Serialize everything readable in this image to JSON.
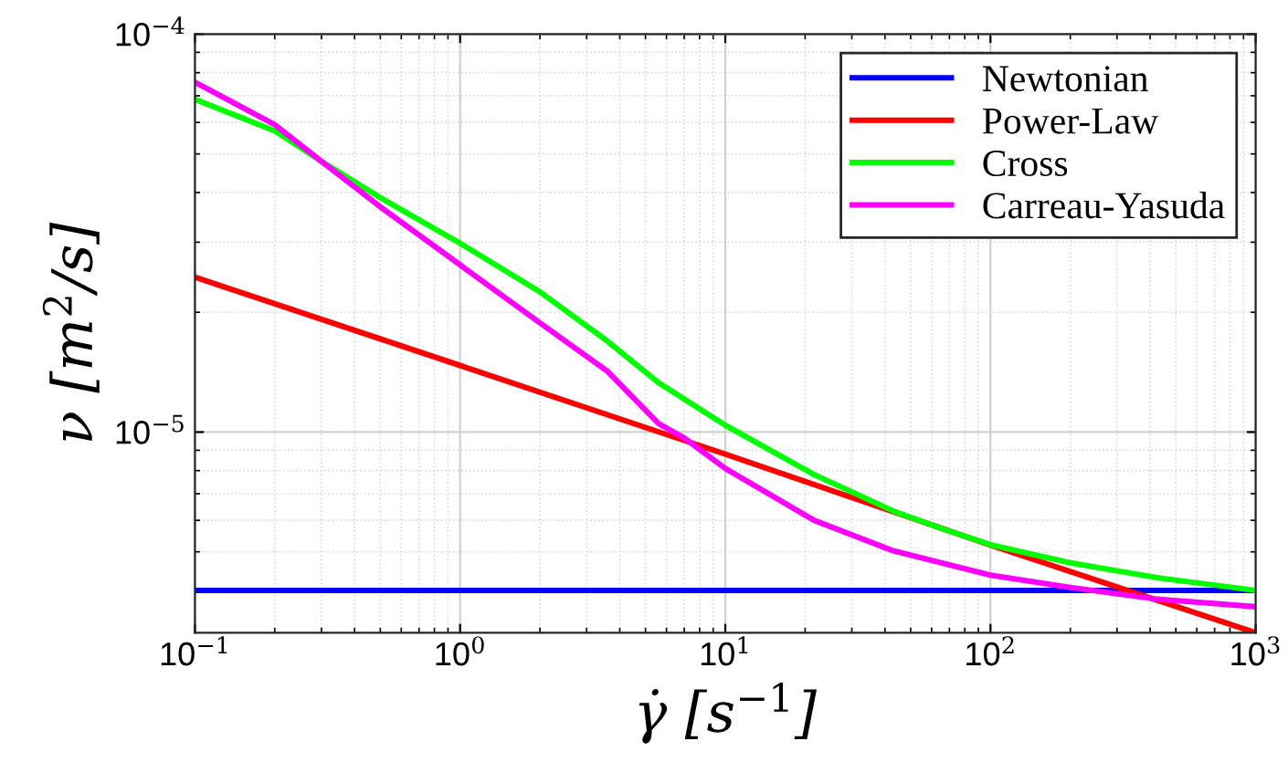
{
  "chart_data": {
    "type": "line",
    "xlabel": "γ̇ [s$^{−1}$]",
    "ylabel": "ν [m$^{2}$/s]",
    "log": "xy",
    "grid": true,
    "legend": "top right",
    "line_style": "solid",
    "marker": "none",
    "xlim": [
      0.1,
      1000
    ],
    "ylim": [
      3.13e-06,
      0.0001
    ],
    "xticks": [
      {
        "value": 0.1,
        "label": "10$^{−1}$"
      },
      {
        "value": 1,
        "label": "10$^{0}$"
      },
      {
        "value": 10,
        "label": "10$^{1}$"
      },
      {
        "value": 100,
        "label": "10$^{2}$"
      },
      {
        "value": 1000,
        "label": "10$^{3}$"
      }
    ],
    "yticks": [
      {
        "value": 1e-05,
        "label": "10$^{−5}$"
      },
      {
        "value": 0.0001,
        "label": "10$^{−4}$"
      }
    ],
    "series": [
      {
        "name": "Newtonian",
        "color": "#0000ff",
        "x": [
          0.1,
          1000
        ],
        "values": [
          4e-06,
          4e-06
        ]
      },
      {
        "name": "Power-Law",
        "color": "#ff0000",
        "x": [
          0.1,
          1,
          10,
          100,
          1000
        ],
        "values": [
          2.45e-05,
          1.47e-05,
          8.8e-06,
          5.2e-06,
          3.13e-06
        ]
      },
      {
        "name": "Cross",
        "color": "#00ff00",
        "x": [
          0.1,
          0.2,
          0.3,
          0.5,
          1,
          2,
          3.6,
          5.6,
          10,
          21.6,
          43,
          67,
          100,
          200,
          430,
          1000
        ],
        "values": [
          6.86e-05,
          5.71e-05,
          4.79e-05,
          3.88e-05,
          2.98e-05,
          2.25e-05,
          1.69e-05,
          1.33e-05,
          1.04e-05,
          7.82e-06,
          6.33e-06,
          5.69e-06,
          5.21e-06,
          4.69e-06,
          4.3e-06,
          4e-06
        ]
      },
      {
        "name": "Carreau-Yasuda",
        "color": "#ff00ff",
        "x": [
          0.1,
          0.2,
          0.3,
          0.5,
          1,
          2,
          3.6,
          5.6,
          7,
          10,
          21.6,
          43,
          100,
          200,
          430,
          1000
        ],
        "values": [
          7.57e-05,
          5.92e-05,
          4.79e-05,
          3.68e-05,
          2.63e-05,
          1.88e-05,
          1.42e-05,
          1.05e-05,
          9.66e-06,
          8.1e-06,
          6e-06,
          5.03e-06,
          4.37e-06,
          4.07e-06,
          3.8e-06,
          3.64e-06
        ]
      }
    ]
  }
}
